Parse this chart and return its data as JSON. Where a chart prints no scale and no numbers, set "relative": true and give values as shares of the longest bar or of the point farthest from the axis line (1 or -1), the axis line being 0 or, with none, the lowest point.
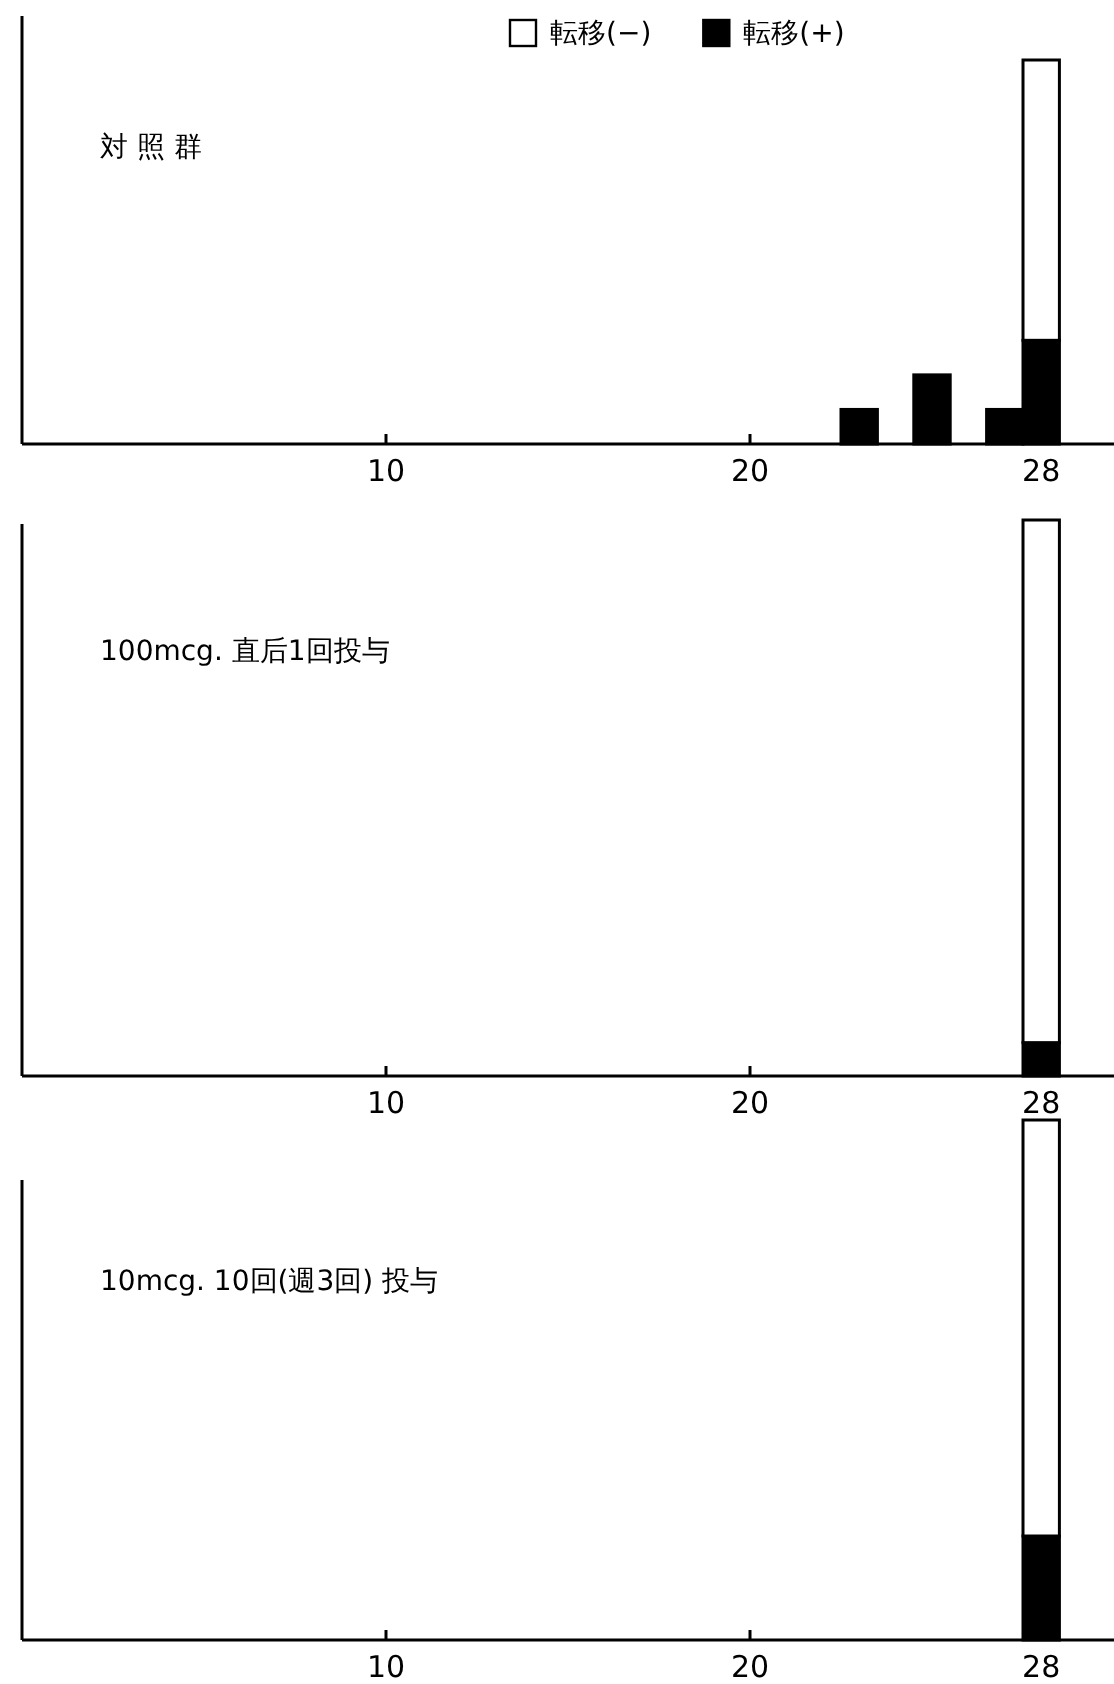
{
  "chart_data": [
    {
      "type": "bar",
      "title": "対 照 群",
      "relative": true,
      "stacked": true,
      "legend": "top",
      "xlim": [
        0,
        30
      ],
      "xticks": [
        10,
        20,
        28
      ],
      "series": [
        {
          "name": "転移(+)",
          "color": "#000000",
          "x": [
            23,
            25,
            27,
            28
          ],
          "values": [
            0.09,
            0.18,
            0.09,
            0.27
          ]
        },
        {
          "name": "転移(−)",
          "color": "#ffffff",
          "x": [
            23,
            25,
            27,
            28
          ],
          "values": [
            0,
            0,
            0,
            0.73
          ]
        }
      ]
    },
    {
      "type": "bar",
      "title": "100mcg. 直后1回投与",
      "relative": true,
      "stacked": true,
      "xlim": [
        0,
        30
      ],
      "xticks": [
        10,
        20,
        28
      ],
      "series": [
        {
          "color": "#000000",
          "x": [
            28
          ],
          "values": [
            0.06
          ]
        },
        {
          "color": "#ffffff",
          "x": [
            28
          ],
          "values": [
            0.94
          ]
        }
      ]
    },
    {
      "type": "bar",
      "title": "10mcg. 10回(週3回) 投与",
      "relative": true,
      "stacked": true,
      "xlim": [
        0,
        30
      ],
      "xticks": [
        10,
        20,
        28
      ],
      "series": [
        {
          "color": "#000000",
          "x": [
            28
          ],
          "values": [
            0.2
          ]
        },
        {
          "color": "#ffffff",
          "x": [
            28
          ],
          "values": [
            0.8
          ]
        }
      ]
    }
  ]
}
